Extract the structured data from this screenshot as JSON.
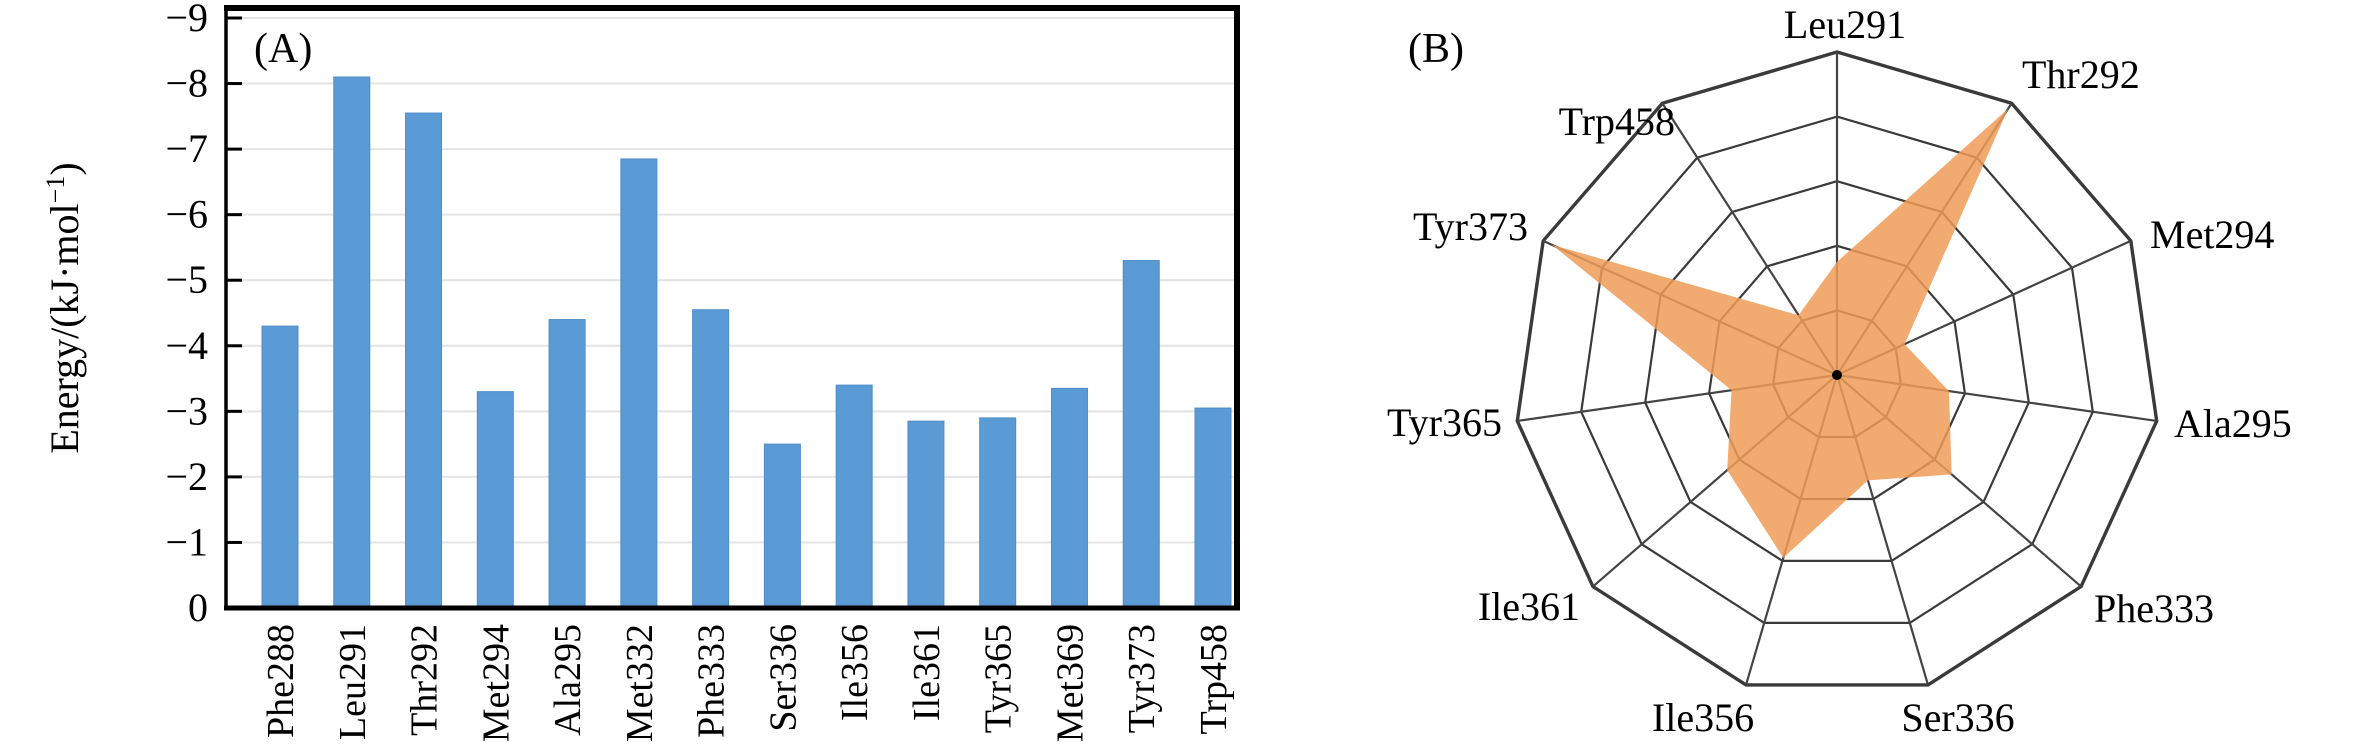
{
  "figure": {
    "panel_a": {
      "label": "(A)",
      "y_axis_title": "Energy/(kJ·mol⁻¹)",
      "y_tick_labels": [
        "−9",
        "−8",
        "−7",
        "−6",
        "−5",
        "−4",
        "−3",
        "−2",
        "−1",
        "0"
      ]
    },
    "panel_b": {
      "label": "(B)"
    }
  },
  "colors": {
    "bar_fill": "#5b9bd5",
    "bar_edge": "#4e8cc9",
    "gridline": "#e4e4e4",
    "axis": "#000000",
    "radar_grid": "#3a3a3a",
    "radar_spoke": "#444444",
    "radar_fill": "#ef9b57",
    "text": "#000000"
  },
  "chart_data": [
    {
      "type": "bar",
      "title": "(A)",
      "categories": [
        "Phe288",
        "Leu291",
        "Thr292",
        "Met294",
        "Ala295",
        "Met332",
        "Phe333",
        "Ser336",
        "Ile356",
        "Ile361",
        "Tyr365",
        "Met369",
        "Tyr373",
        "Trp458"
      ],
      "values": [
        -4.3,
        -8.1,
        -7.55,
        -3.3,
        -4.4,
        -6.85,
        -4.55,
        -2.5,
        -3.4,
        -2.85,
        -2.9,
        -3.35,
        -5.3,
        -3.05
      ],
      "xlabel": "",
      "ylabel": "Energy/(kJ·mol⁻¹)",
      "ylim": [
        0,
        -9
      ],
      "y_tick_step": 1,
      "grid": true,
      "x_labels_rotated_90": true,
      "legend": "none"
    },
    {
      "type": "radar",
      "title": "(B)",
      "categories": [
        "Leu291",
        "Thr292",
        "Met294",
        "Ala295",
        "Phe333",
        "Ser336",
        "Ile356",
        "Ile361",
        "Tyr365",
        "Tyr373",
        "Trp458"
      ],
      "values_fraction_of_outer_ring": [
        0.35,
        0.98,
        0.23,
        0.35,
        0.47,
        0.34,
        0.59,
        0.45,
        0.33,
        0.97,
        0.22
      ],
      "ring_count": 5,
      "start_axis": "top",
      "direction": "clockwise",
      "legend": "none",
      "numeric_tick_labels_shown": false
    }
  ]
}
